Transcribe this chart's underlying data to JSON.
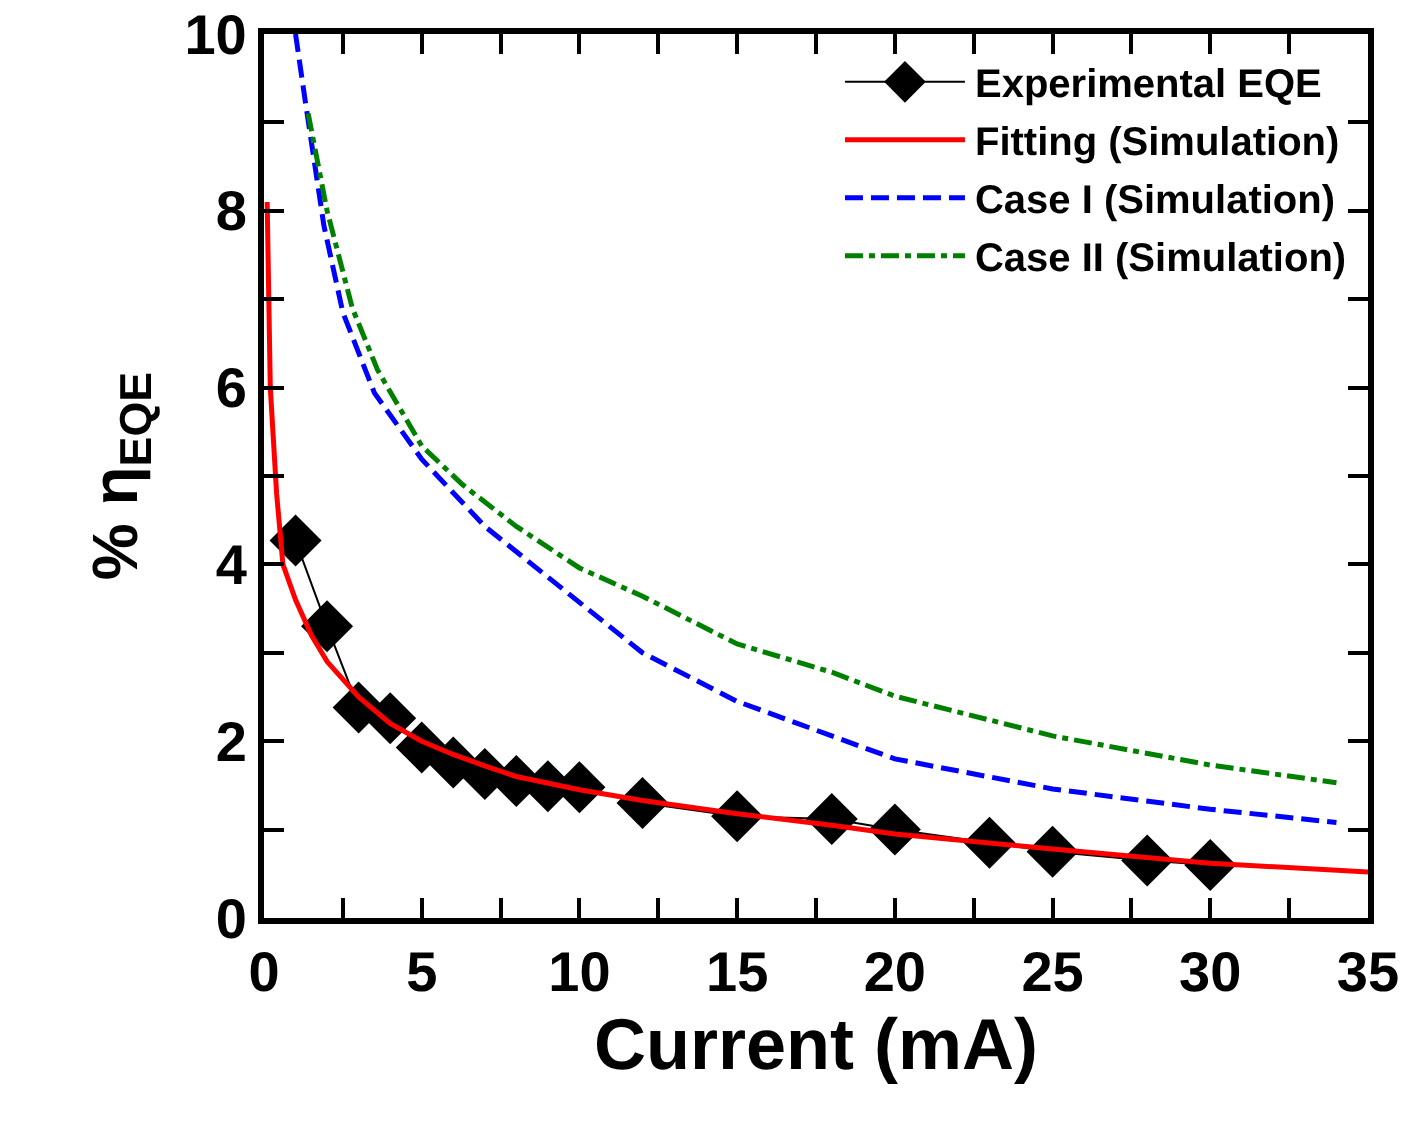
{
  "chart_data": {
    "type": "line",
    "xlabel": "Current (mA)",
    "ylabel": "% η$_{EQE}$",
    "xlim": [
      0,
      35
    ],
    "ylim": [
      0,
      10
    ],
    "xticks": [
      0,
      {
        "value": 2.5,
        "label": null
      },
      5,
      {
        "value": 7.5,
        "label": null
      },
      10,
      {
        "value": 12.5,
        "label": null
      },
      15,
      {
        "value": 17.5,
        "label": null
      },
      20,
      {
        "value": 22.5,
        "label": null
      },
      25,
      {
        "value": 27.5,
        "label": null
      },
      30,
      {
        "value": 32.5,
        "label": null
      },
      35
    ],
    "yticks": [
      0,
      {
        "value": 1,
        "label": null
      },
      2,
      {
        "value": 3,
        "label": null
      },
      4,
      {
        "value": 5,
        "label": null
      },
      6,
      {
        "value": 7,
        "label": null
      },
      8,
      {
        "value": 9,
        "label": null
      },
      10
    ],
    "grid": false,
    "legend": "top right",
    "series": [
      {
        "name": "Experimental EQE",
        "color": "#000000",
        "marker": "diamond",
        "line_style": "solid",
        "x": [
          1,
          2,
          3,
          4,
          5,
          6,
          7,
          8,
          9,
          10,
          12,
          15,
          18,
          20,
          23,
          25,
          28,
          30
        ],
        "values": [
          4.27,
          3.3,
          2.38,
          2.26,
          1.93,
          1.76,
          1.63,
          1.55,
          1.49,
          1.48,
          1.3,
          1.15,
          1.12,
          1.0,
          0.85,
          0.75,
          0.65,
          0.6
        ]
      },
      {
        "name": "Fitting (Simulation)",
        "color": "#ff0000",
        "marker": "none",
        "line_style": "solid",
        "x": [
          0.1,
          0.2,
          0.4,
          0.6,
          1,
          1.5,
          2,
          3,
          4,
          5,
          6,
          7,
          8,
          10,
          12,
          15,
          18,
          20,
          25,
          30,
          35
        ],
        "values": [
          8.1,
          6.0,
          4.8,
          4.0,
          3.6,
          3.2,
          2.9,
          2.5,
          2.2,
          2.0,
          1.85,
          1.72,
          1.6,
          1.45,
          1.33,
          1.18,
          1.05,
          0.95,
          0.78,
          0.62,
          0.52
        ]
      },
      {
        "name": "Case I (Simulation)",
        "color": "#0000ff",
        "marker": "none",
        "line_style": "dashed",
        "x": [
          1,
          1.3,
          1.9,
          2.5,
          3.5,
          5,
          7,
          10,
          12,
          15,
          18,
          20,
          25,
          30,
          34
        ],
        "values": [
          10,
          9.26,
          7.83,
          6.85,
          5.94,
          5.19,
          4.43,
          3.57,
          3.0,
          2.45,
          2.06,
          1.8,
          1.46,
          1.23,
          1.08
        ]
      },
      {
        "name": "Case II (Simulation)",
        "color": "#008000",
        "marker": "none",
        "line_style": "dashdot",
        "x": [
          1.4,
          2,
          2.8,
          3.6,
          5,
          6.3,
          8,
          10,
          12,
          15,
          18,
          20,
          25,
          30,
          34
        ],
        "values": [
          9.1,
          8.0,
          6.9,
          6.2,
          5.34,
          4.9,
          4.43,
          3.96,
          3.64,
          3.1,
          2.78,
          2.51,
          2.06,
          1.73,
          1.53
        ]
      }
    ]
  }
}
